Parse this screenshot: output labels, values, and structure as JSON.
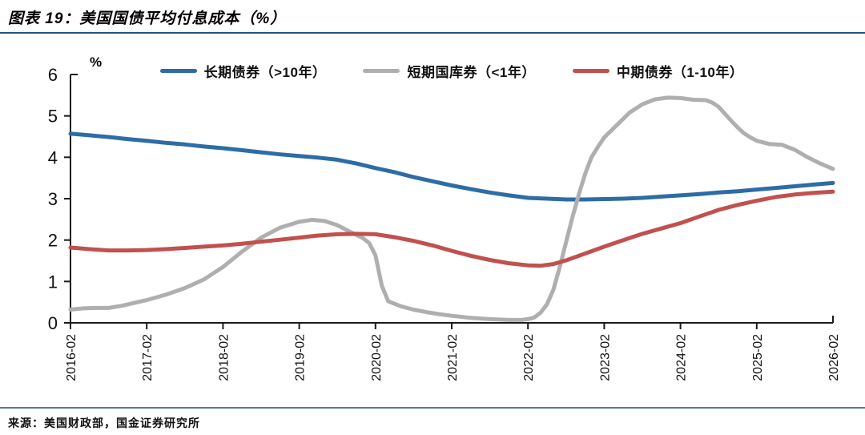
{
  "title": "图表 19：美国国债平均付息成本（%）",
  "source": "来源：美国财政部，国金证券研究所",
  "colors": {
    "title_rule": "#24527E",
    "bottom_rule": "#4A7A9D",
    "axis": "#1a1a1a",
    "long_term": "#2D6CA6",
    "short_term": "#AFAFAF",
    "medium_term": "#C1504E"
  },
  "chart_data": {
    "type": "line",
    "unit_label": "%",
    "ylim": [
      0,
      6
    ],
    "y_ticks": [
      0,
      1,
      2,
      3,
      4,
      5,
      6
    ],
    "x_months_span": 120,
    "x_tick_interval_months": 12,
    "x_tick_labels": [
      "2016-02",
      "2017-02",
      "2018-02",
      "2019-02",
      "2020-02",
      "2021-02",
      "2022-02",
      "2023-02",
      "2024-02",
      "2025-02",
      "2026-02"
    ],
    "legend_position": "top",
    "grid": false,
    "series": [
      {
        "name": "长期债券（>10年）",
        "color": "#2D6CA6",
        "points": [
          [
            0,
            4.57
          ],
          [
            3,
            4.53
          ],
          [
            6,
            4.49
          ],
          [
            9,
            4.44
          ],
          [
            12,
            4.4
          ],
          [
            15,
            4.35
          ],
          [
            18,
            4.31
          ],
          [
            21,
            4.26
          ],
          [
            24,
            4.22
          ],
          [
            27,
            4.17
          ],
          [
            30,
            4.12
          ],
          [
            33,
            4.07
          ],
          [
            36,
            4.03
          ],
          [
            39,
            3.99
          ],
          [
            42,
            3.94
          ],
          [
            45,
            3.85
          ],
          [
            48,
            3.74
          ],
          [
            51,
            3.64
          ],
          [
            54,
            3.52
          ],
          [
            57,
            3.42
          ],
          [
            60,
            3.32
          ],
          [
            63,
            3.23
          ],
          [
            66,
            3.15
          ],
          [
            69,
            3.08
          ],
          [
            72,
            3.02
          ],
          [
            75,
            3.0
          ],
          [
            78,
            2.98
          ],
          [
            81,
            2.98
          ],
          [
            84,
            2.99
          ],
          [
            87,
            3.0
          ],
          [
            90,
            3.02
          ],
          [
            93,
            3.05
          ],
          [
            96,
            3.08
          ],
          [
            99,
            3.11
          ],
          [
            102,
            3.15
          ],
          [
            105,
            3.18
          ],
          [
            108,
            3.22
          ],
          [
            111,
            3.26
          ],
          [
            114,
            3.3
          ],
          [
            117,
            3.34
          ],
          [
            120,
            3.38
          ]
        ]
      },
      {
        "name": "短期国库券（<1年）",
        "color": "#AFAFAF",
        "points": [
          [
            0,
            0.32
          ],
          [
            2,
            0.35
          ],
          [
            4,
            0.36
          ],
          [
            6,
            0.36
          ],
          [
            8,
            0.41
          ],
          [
            10,
            0.48
          ],
          [
            12,
            0.55
          ],
          [
            15,
            0.68
          ],
          [
            18,
            0.84
          ],
          [
            21,
            1.05
          ],
          [
            24,
            1.35
          ],
          [
            27,
            1.72
          ],
          [
            30,
            2.06
          ],
          [
            33,
            2.3
          ],
          [
            36,
            2.44
          ],
          [
            38,
            2.49
          ],
          [
            40,
            2.46
          ],
          [
            42,
            2.36
          ],
          [
            44,
            2.2
          ],
          [
            46,
            2.05
          ],
          [
            47,
            1.93
          ],
          [
            48,
            1.63
          ],
          [
            49,
            0.9
          ],
          [
            50,
            0.52
          ],
          [
            52,
            0.4
          ],
          [
            54,
            0.32
          ],
          [
            56,
            0.26
          ],
          [
            58,
            0.21
          ],
          [
            60,
            0.17
          ],
          [
            63,
            0.12
          ],
          [
            66,
            0.09
          ],
          [
            69,
            0.07
          ],
          [
            71,
            0.07
          ],
          [
            72,
            0.09
          ],
          [
            73,
            0.13
          ],
          [
            74,
            0.25
          ],
          [
            75,
            0.45
          ],
          [
            76,
            0.8
          ],
          [
            77,
            1.35
          ],
          [
            78,
            1.95
          ],
          [
            79,
            2.55
          ],
          [
            80,
            3.1
          ],
          [
            81,
            3.6
          ],
          [
            82,
            4.0
          ],
          [
            83,
            4.25
          ],
          [
            84,
            4.48
          ],
          [
            86,
            4.78
          ],
          [
            88,
            5.08
          ],
          [
            90,
            5.28
          ],
          [
            92,
            5.4
          ],
          [
            94,
            5.44
          ],
          [
            96,
            5.43
          ],
          [
            98,
            5.39
          ],
          [
            100,
            5.38
          ],
          [
            101,
            5.32
          ],
          [
            102,
            5.22
          ],
          [
            103,
            5.05
          ],
          [
            104,
            4.88
          ],
          [
            105,
            4.72
          ],
          [
            106,
            4.58
          ],
          [
            107,
            4.48
          ],
          [
            108,
            4.4
          ],
          [
            110,
            4.32
          ],
          [
            112,
            4.3
          ],
          [
            114,
            4.18
          ],
          [
            116,
            4.0
          ],
          [
            118,
            3.85
          ],
          [
            120,
            3.72
          ]
        ]
      },
      {
        "name": "中期债券（1-10年）",
        "color": "#C1504E",
        "points": [
          [
            0,
            1.82
          ],
          [
            3,
            1.78
          ],
          [
            6,
            1.75
          ],
          [
            9,
            1.75
          ],
          [
            12,
            1.76
          ],
          [
            15,
            1.78
          ],
          [
            18,
            1.81
          ],
          [
            21,
            1.84
          ],
          [
            24,
            1.87
          ],
          [
            27,
            1.91
          ],
          [
            30,
            1.96
          ],
          [
            33,
            2.01
          ],
          [
            36,
            2.06
          ],
          [
            39,
            2.11
          ],
          [
            42,
            2.14
          ],
          [
            45,
            2.15
          ],
          [
            48,
            2.14
          ],
          [
            51,
            2.07
          ],
          [
            54,
            1.98
          ],
          [
            57,
            1.87
          ],
          [
            60,
            1.74
          ],
          [
            63,
            1.62
          ],
          [
            66,
            1.52
          ],
          [
            69,
            1.44
          ],
          [
            72,
            1.39
          ],
          [
            74,
            1.38
          ],
          [
            76,
            1.42
          ],
          [
            78,
            1.51
          ],
          [
            80,
            1.62
          ],
          [
            82,
            1.73
          ],
          [
            84,
            1.84
          ],
          [
            87,
            2.0
          ],
          [
            90,
            2.15
          ],
          [
            93,
            2.28
          ],
          [
            96,
            2.41
          ],
          [
            99,
            2.57
          ],
          [
            102,
            2.73
          ],
          [
            105,
            2.85
          ],
          [
            108,
            2.95
          ],
          [
            111,
            3.04
          ],
          [
            114,
            3.1
          ],
          [
            117,
            3.14
          ],
          [
            120,
            3.17
          ]
        ]
      }
    ]
  }
}
